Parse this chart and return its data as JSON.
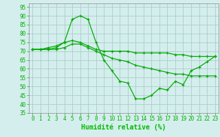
{
  "background_color": "#d4eeed",
  "grid_color": "#aaccc8",
  "line_color": "#00aa00",
  "marker_color": "#00aa00",
  "xlabel": "Humidité relative (%)",
  "xlabel_color": "#00bb00",
  "xlabel_fontsize": 7,
  "tick_color": "#00aa00",
  "tick_fontsize": 5.5,
  "ylim": [
    35,
    97
  ],
  "yticks": [
    35,
    40,
    45,
    50,
    55,
    60,
    65,
    70,
    75,
    80,
    85,
    90,
    95
  ],
  "xlim": [
    -0.5,
    23.5
  ],
  "xticks": [
    0,
    1,
    2,
    3,
    4,
    5,
    6,
    7,
    8,
    9,
    10,
    11,
    12,
    13,
    14,
    15,
    16,
    17,
    18,
    19,
    20,
    21,
    22,
    23
  ],
  "curve1_x": [
    0,
    1,
    2,
    3,
    4,
    5,
    6,
    7,
    8,
    9,
    10,
    11,
    12,
    13,
    14,
    15,
    16,
    17,
    18,
    19,
    20,
    21,
    22,
    23
  ],
  "curve1_y": [
    71,
    71,
    71,
    72,
    75,
    88,
    90,
    88,
    75,
    65,
    59,
    53,
    52,
    43,
    43,
    45,
    49,
    48,
    53,
    51,
    59,
    61,
    64,
    67
  ],
  "curve2_x": [
    0,
    1,
    2,
    3,
    4,
    5,
    6,
    7,
    8,
    9,
    10,
    11,
    12,
    13,
    14,
    15,
    16,
    17,
    18,
    19,
    20,
    21,
    22,
    23
  ],
  "curve2_y": [
    71,
    71,
    72,
    73,
    75,
    76,
    75,
    73,
    71,
    70,
    70,
    70,
    70,
    69,
    69,
    69,
    69,
    69,
    68,
    68,
    67,
    67,
    67,
    67
  ],
  "curve3_x": [
    0,
    1,
    2,
    3,
    4,
    5,
    6,
    7,
    8,
    9,
    10,
    11,
    12,
    13,
    14,
    15,
    16,
    17,
    18,
    19,
    20,
    21,
    22,
    23
  ],
  "curve3_y": [
    71,
    71,
    71,
    71,
    72,
    74,
    74,
    72,
    70,
    68,
    66,
    65,
    64,
    62,
    61,
    60,
    59,
    58,
    57,
    57,
    56,
    56,
    56,
    56
  ]
}
